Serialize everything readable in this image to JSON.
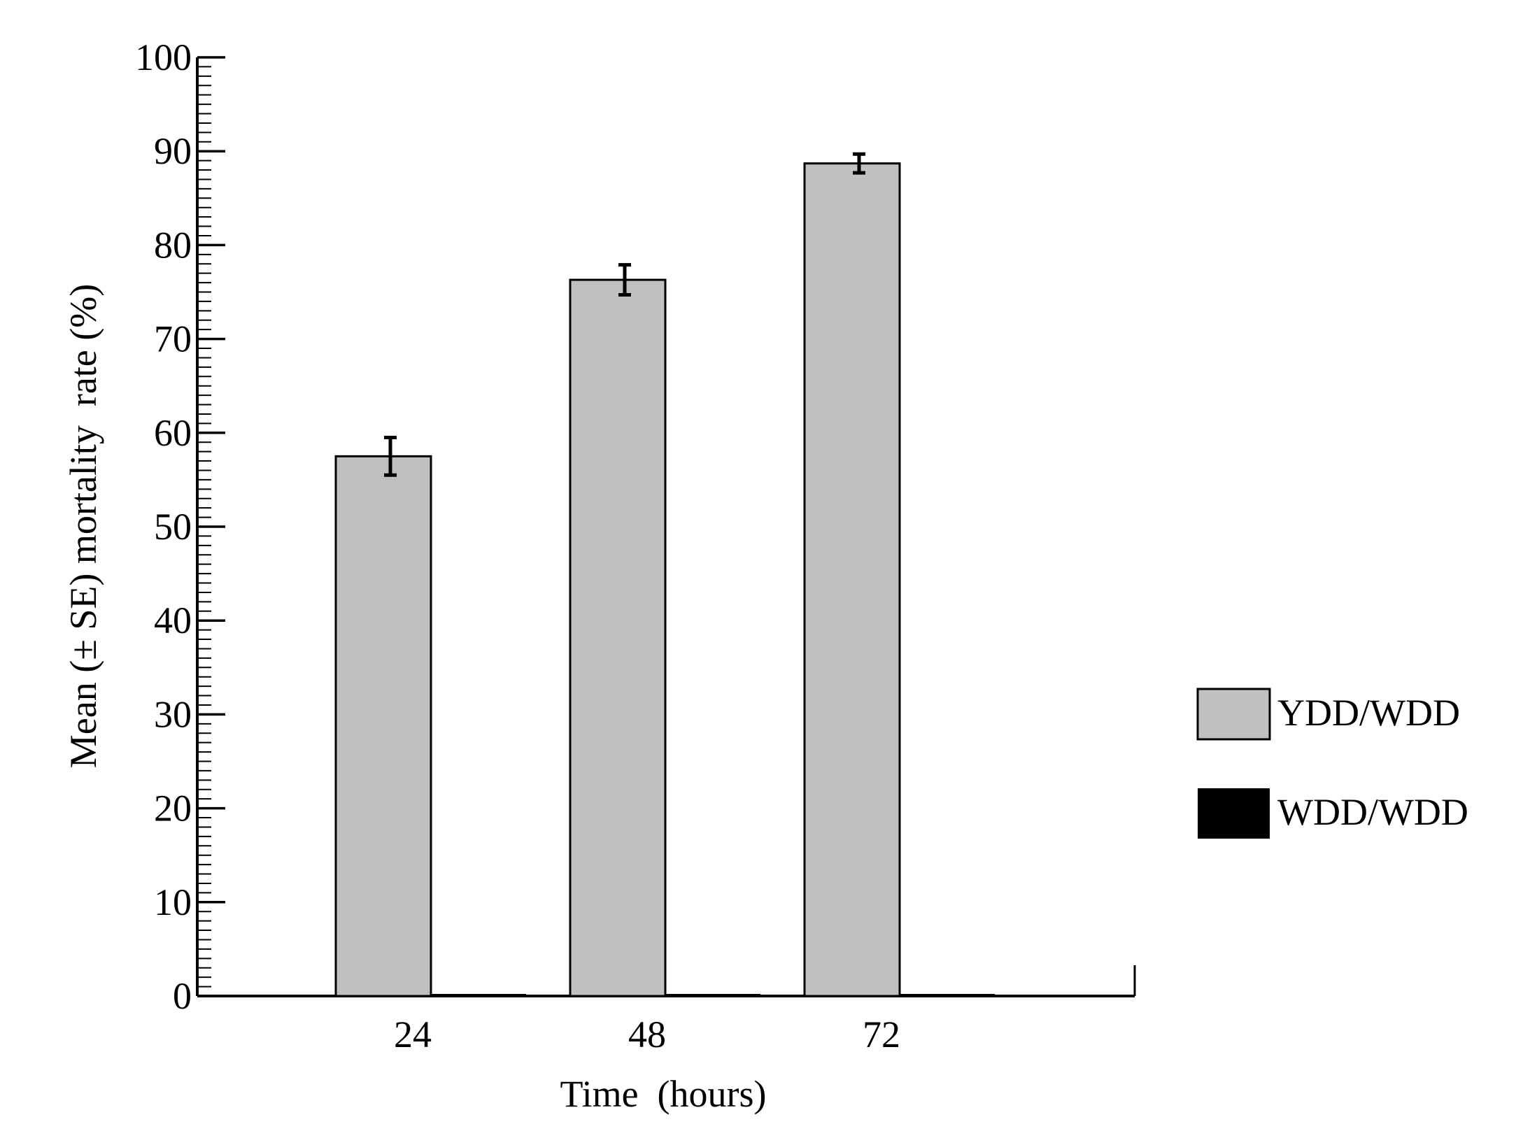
{
  "chart_data": {
    "type": "bar",
    "categories": [
      "24",
      "48",
      "72"
    ],
    "series": [
      {
        "name": "YDD/WDD",
        "values": [
          57.5,
          76.3,
          88.7
        ],
        "errors": [
          2.0,
          1.6,
          1.0
        ],
        "color": "#c0c0c0"
      },
      {
        "name": "WDD/WDD",
        "values": [
          0,
          0,
          0
        ],
        "errors": [
          0,
          0,
          0
        ],
        "color": "#000000"
      }
    ],
    "xlabel": "Time  (hours)",
    "ylabel": "Mean (± SE) mortality  rate (%)",
    "ylim": [
      0,
      100
    ],
    "yticks": [
      "0",
      "10",
      "20",
      "30",
      "40",
      "50",
      "60",
      "70",
      "80",
      "90",
      "100"
    ],
    "minor_tick_step": 1,
    "grid": false,
    "legend_position": "right"
  }
}
